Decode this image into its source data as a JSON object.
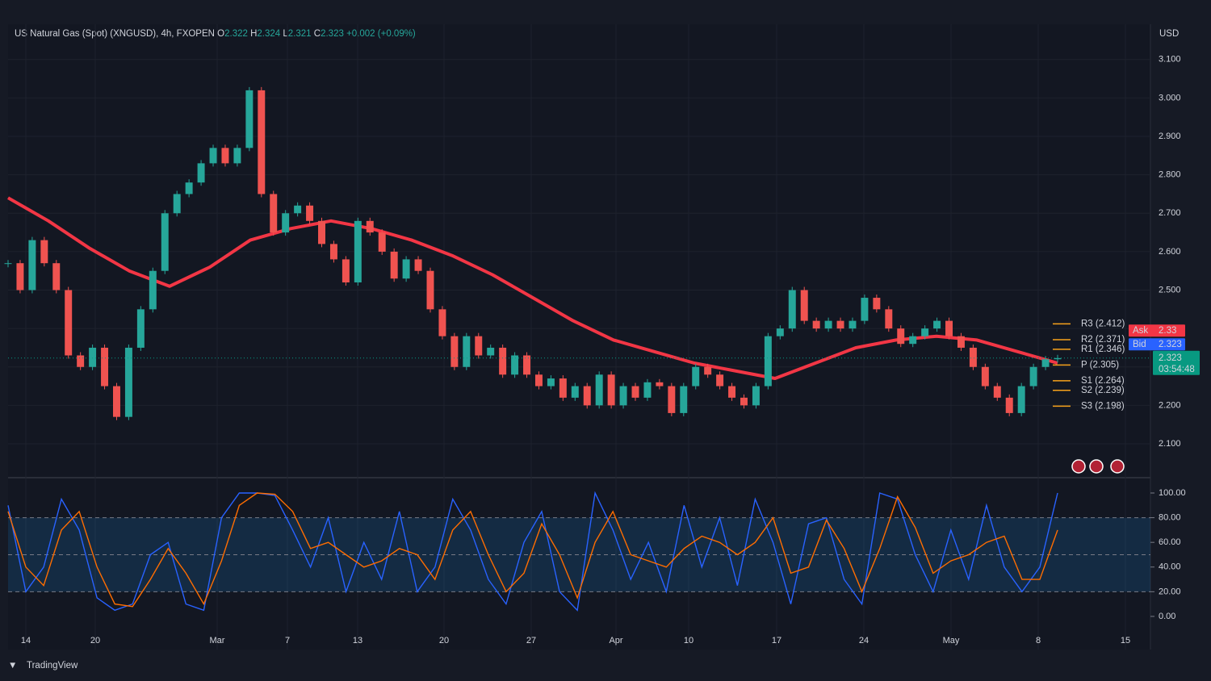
{
  "chart_data": {
    "type": "candlestick",
    "title": "US Natural Gas (Spot) (XNGUSD), 4h, FXOPEN",
    "ohlc": [
      {
        "label": "O",
        "value": 2.322
      },
      {
        "label": "H",
        "value": 2.324
      },
      {
        "label": "L",
        "value": 2.321
      },
      {
        "label": "C",
        "value": 2.323
      }
    ],
    "change": [
      {
        "value": 0.002,
        "label": "+0.002"
      },
      {
        "value": 0.09,
        "label": "(+0.09%)"
      }
    ],
    "currency": "USD",
    "up_color": "#26a69a",
    "down_color": "#ef5350",
    "values": [
      2.57,
      2.5,
      2.63,
      2.57,
      2.5,
      2.33,
      2.3,
      2.35,
      2.25,
      2.17,
      2.35,
      2.45,
      2.55,
      2.7,
      2.75,
      2.78,
      2.83,
      2.87,
      2.83,
      2.87,
      3.02,
      2.75,
      2.65,
      2.7,
      2.72,
      2.68,
      2.62,
      2.58,
      2.52,
      2.68,
      2.65,
      2.6,
      2.53,
      2.58,
      2.55,
      2.45,
      2.38,
      2.3,
      2.38,
      2.33,
      2.35,
      2.28,
      2.33,
      2.28,
      2.25,
      2.27,
      2.22,
      2.25,
      2.2,
      2.28,
      2.2,
      2.25,
      2.22,
      2.26,
      2.25,
      2.18,
      2.25,
      2.3,
      2.28,
      2.25,
      2.22,
      2.2,
      2.25,
      2.38,
      2.4,
      2.5,
      2.42,
      2.4,
      2.42,
      2.4,
      2.42,
      2.48,
      2.45,
      2.4,
      2.36,
      2.38,
      2.4,
      2.42,
      2.38,
      2.35,
      2.3,
      2.25,
      2.22,
      2.18,
      2.25,
      2.3,
      2.32,
      2.323
    ],
    "moving_average": {
      "color": "#f23645",
      "values": [
        2.74,
        2.68,
        2.61,
        2.55,
        2.51,
        2.56,
        2.63,
        2.66,
        2.68,
        2.66,
        2.63,
        2.59,
        2.54,
        2.48,
        2.42,
        2.37,
        2.34,
        2.31,
        2.29,
        2.27,
        2.31,
        2.35,
        2.37,
        2.38,
        2.37,
        2.34,
        2.31
      ]
    },
    "ylim": [
      2.016,
      3.192
    ],
    "yticks": [
      {
        "value": 2.1,
        "label": "2.100"
      },
      {
        "value": 2.2,
        "label": "2.200"
      },
      {
        "value": 2.3,
        "label": "2.300"
      },
      {
        "value": 2.4,
        "label": "2.400"
      },
      {
        "value": 2.5,
        "label": "2.500"
      },
      {
        "value": 2.6,
        "label": "2.600"
      },
      {
        "value": 2.7,
        "label": "2.700"
      },
      {
        "value": 2.8,
        "label": "2.800"
      },
      {
        "value": 2.9,
        "label": "2.900"
      },
      {
        "value": 3.0,
        "label": "3.000"
      },
      {
        "value": 3.1,
        "label": "3.100"
      }
    ],
    "pivots": [
      {
        "value": 2.412,
        "label": "R3 (2.412)"
      },
      {
        "value": 2.371,
        "label": "R2 (2.371)"
      },
      {
        "value": 2.346,
        "label": "R1 (2.346)"
      },
      {
        "value": 2.305,
        "label": "P (2.305)"
      },
      {
        "value": 2.264,
        "label": "S1 (2.264)"
      },
      {
        "value": 2.239,
        "label": "S2 (2.239)"
      },
      {
        "value": 2.198,
        "label": "S3 (2.198)"
      }
    ],
    "pivot_color": "#f7a21b",
    "ask": {
      "label": "Ask",
      "value": 2.33,
      "color": "#f23645"
    },
    "bid": {
      "label": "Bid",
      "value": 2.323,
      "color": "#2962ff"
    },
    "last": {
      "value": 2.323,
      "label": "2.323",
      "countdown": "03:54:48",
      "color": "#089981"
    },
    "xticks": [
      "14",
      "20",
      "Mar",
      "7",
      "13",
      "20",
      "27",
      "Apr",
      "10",
      "17",
      "24",
      "May",
      "8",
      "15"
    ],
    "grid": true,
    "oscillator": {
      "series": [
        {
          "color": "#2962ff",
          "values": [
            90,
            20,
            40,
            95,
            70,
            15,
            5,
            10,
            50,
            60,
            10,
            5,
            80,
            100,
            100,
            98,
            70,
            40,
            80,
            20,
            60,
            30,
            85,
            20,
            40,
            95,
            70,
            30,
            10,
            60,
            85,
            20,
            5,
            100,
            70,
            30,
            60,
            20,
            90,
            40,
            80,
            25,
            95,
            60,
            10,
            75,
            80,
            30,
            10,
            100,
            95,
            50,
            20,
            70,
            30,
            90,
            40,
            20,
            40,
            100
          ]
        },
        {
          "color": "#ff6d00",
          "values": [
            85,
            40,
            25,
            70,
            85,
            40,
            10,
            8,
            30,
            55,
            35,
            10,
            45,
            90,
            100,
            99,
            85,
            55,
            60,
            50,
            40,
            45,
            55,
            50,
            30,
            70,
            85,
            50,
            20,
            35,
            75,
            50,
            15,
            60,
            85,
            50,
            45,
            40,
            55,
            65,
            60,
            50,
            60,
            80,
            35,
            40,
            78,
            55,
            20,
            55,
            97,
            72,
            35,
            45,
            50,
            60,
            65,
            30,
            30,
            70
          ]
        }
      ],
      "ylim": [
        -9.2,
        108.5
      ],
      "yticks": [
        {
          "value": 0,
          "label": "0.00"
        },
        {
          "value": 20,
          "label": "20.00"
        },
        {
          "value": 40,
          "label": "40.00"
        },
        {
          "value": 60,
          "label": "60.00"
        },
        {
          "value": 80,
          "label": "80.00"
        },
        {
          "value": 100,
          "label": "100.00"
        }
      ],
      "band": [
        20,
        80
      ],
      "midline": 50
    },
    "brand": "TradingView"
  }
}
